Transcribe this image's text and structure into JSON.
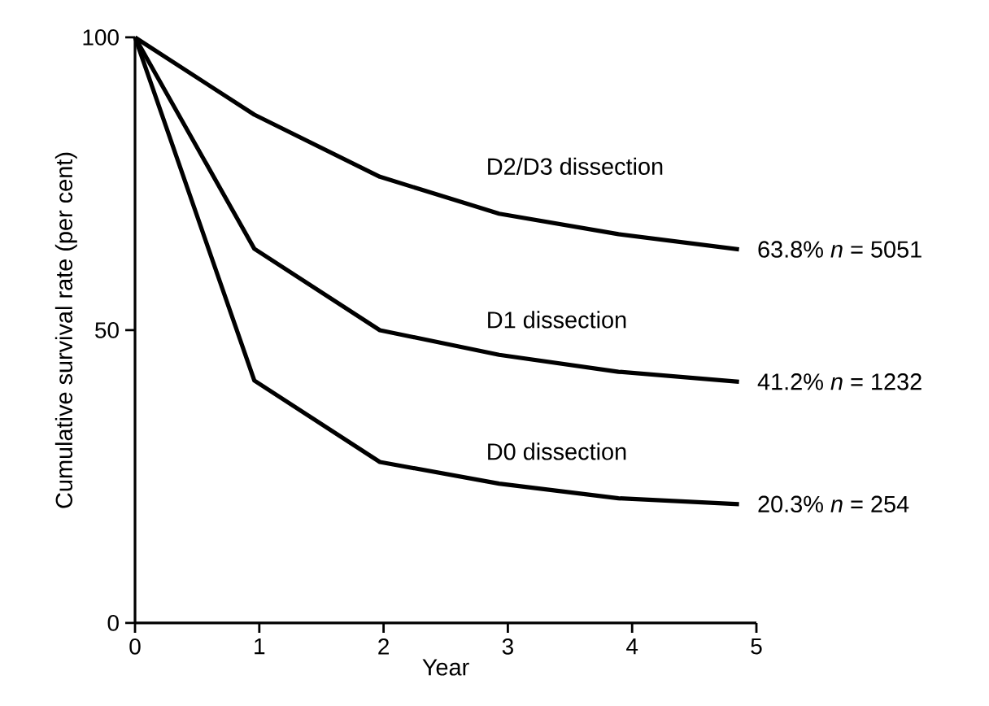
{
  "chart_data": {
    "type": "line",
    "xlabel": "Year",
    "ylabel": "Cumulative survival rate (per cent)",
    "xlim": [
      0,
      5
    ],
    "ylim": [
      0,
      100
    ],
    "xticks": [
      0,
      1,
      2,
      3,
      4,
      5
    ],
    "yticks": [
      0,
      50,
      100
    ],
    "grid": false,
    "marker": "none",
    "line_style": "solid",
    "x": [
      0,
      0.96,
      1.97,
      2.93,
      3.89,
      4.86
    ],
    "series": [
      {
        "name": "D2/D3 dissection",
        "color": "#000000",
        "values": [
          100,
          86.8,
          76.2,
          69.9,
          66.4,
          63.8
        ]
      },
      {
        "name": "D1 dissection",
        "color": "#000000",
        "values": [
          100,
          63.9,
          50,
          45.8,
          42.9,
          41.2
        ]
      },
      {
        "name": "D0 dissection",
        "color": "#000000",
        "values": [
          100,
          41.4,
          27.5,
          23.8,
          21.3,
          20.3
        ]
      }
    ],
    "annotations": [
      "63.8%  *n* = 5051",
      "41.2%  *n* = 1232",
      "20.3%  *n* = 254"
    ]
  }
}
